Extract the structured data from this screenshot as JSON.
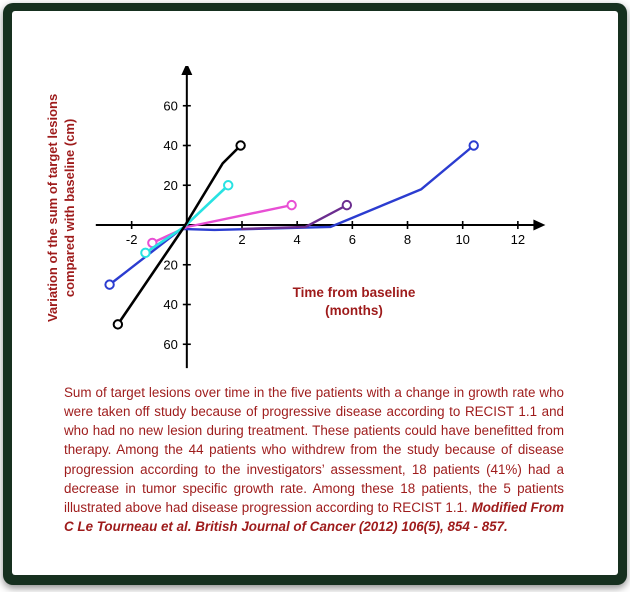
{
  "colors": {
    "frame_green": "#16301f",
    "accent_red": "#9e1b1b",
    "axis_black": "#000000"
  },
  "chart_data": {
    "type": "line",
    "title": "",
    "ylabel": "Variation of the sum of target lesions compared with baseline (cm)",
    "ylabel_lines": [
      "Variation of the sum of target lesions",
      "compared with baseline (cm)"
    ],
    "xlabel": "Time from baseline (months)",
    "xlabel_lines": [
      "Time from baseline",
      "(months)"
    ],
    "xlim": [
      -3.8,
      13.6
    ],
    "ylim": [
      -80,
      80
    ],
    "axis_line_x": [
      -3.3,
      12.6
    ],
    "axis_line_y": [
      -72,
      76
    ],
    "grid": false,
    "legend": "none",
    "x_ticks": [
      {
        "v": -2,
        "label": "-2"
      },
      {
        "v": 2,
        "label": "2"
      },
      {
        "v": 4,
        "label": "4"
      },
      {
        "v": 6,
        "label": "6"
      },
      {
        "v": 8,
        "label": "8"
      },
      {
        "v": 10,
        "label": "10"
      },
      {
        "v": 12,
        "label": "12"
      }
    ],
    "y_ticks": [
      {
        "v": 60,
        "label": "60"
      },
      {
        "v": 40,
        "label": "40"
      },
      {
        "v": 20,
        "label": "20"
      },
      {
        "v": -20,
        "label": "20"
      },
      {
        "v": -40,
        "label": "40"
      },
      {
        "v": -60,
        "label": "60"
      }
    ],
    "series": [
      {
        "name": "patient-blue",
        "color": "#2b3cd0",
        "width": 2.4,
        "points": [
          [
            -2.8,
            -30
          ],
          [
            -0.2,
            -2
          ],
          [
            1.0,
            -2.5
          ],
          [
            5.2,
            -1
          ],
          [
            8.5,
            18
          ],
          [
            10.4,
            40
          ]
        ],
        "markers": [
          0,
          5
        ]
      },
      {
        "name": "patient-purple",
        "color": "#6b2d8f",
        "width": 2.4,
        "points": [
          [
            2.0,
            -2
          ],
          [
            4.3,
            -1
          ],
          [
            5.8,
            10
          ]
        ],
        "markers": [
          2
        ]
      },
      {
        "name": "patient-magenta",
        "color": "#e84fd4",
        "width": 2.4,
        "points": [
          [
            -1.25,
            -9
          ],
          [
            0,
            -1
          ],
          [
            3.8,
            10
          ]
        ],
        "markers": [
          0,
          2
        ]
      },
      {
        "name": "patient-cyan",
        "color": "#28e2e2",
        "width": 2.6,
        "points": [
          [
            -1.5,
            -14
          ],
          [
            -0.1,
            -1
          ],
          [
            1.5,
            20
          ]
        ],
        "markers": [
          0,
          2
        ]
      },
      {
        "name": "patient-black",
        "color": "#000000",
        "width": 2.6,
        "points": [
          [
            -2.5,
            -50
          ],
          [
            -0.1,
            -1
          ],
          [
            1.3,
            31
          ],
          [
            1.95,
            40
          ]
        ],
        "markers": [
          0,
          3
        ]
      }
    ]
  },
  "caption": {
    "body": "Sum of target lesions over time in the five patients with a change in growth rate who were taken off study because of progressive disease according to RECIST 1.1 and who had no new lesion during treatment. These patients could have benefitted from therapy. Among the 44 patients who withdrew from the study because of disease progression according to the investigators’ assessment, 18 patients (41%) had a decrease in tumor specific growth rate. Among these 18 patients, the 5 patients illustrated above had disease progression according to RECIST 1.1. ",
    "citation": "Modified From C Le Tourneau et al. British Journal of Cancer (2012) 106(5), 854 - 857."
  }
}
